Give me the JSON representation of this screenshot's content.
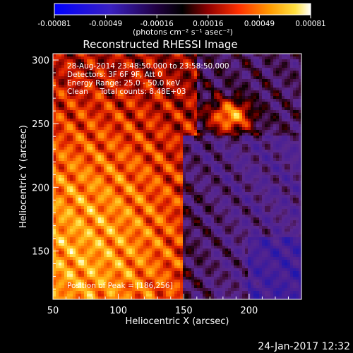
{
  "title": "Reconstructed RHESSI Image",
  "colorbar": {
    "ticks": [
      "-0.00081",
      "-0.00049",
      "-0.00016",
      "0.00016",
      "0.00049",
      "0.00081"
    ],
    "unit_label": "(photons cm⁻² s⁻¹ asec⁻²)",
    "colors": [
      "#0000ff",
      "#4b1fb4",
      "#000000",
      "#a00000",
      "#ff4000",
      "#ff9a00",
      "#ffe040",
      "#ffffff"
    ]
  },
  "annotations": {
    "time_range": "28-Aug-2014 23:48:50.000 to 23:58:50.000",
    "detectors": "Detectors: 3F 6F 9F, Att 0",
    "energy": "Energy Range: 25.0 - 50.0 keV",
    "clean": "Clean     Total counts: 8.48E+03",
    "peak": "Position of Peak = [186,256]"
  },
  "footer_timestamp": "24-Jan-2017 12:32",
  "chart_data": {
    "type": "heatmap",
    "title": "Reconstructed RHESSI Image",
    "xlabel": "Heliocentric X (arcsec)",
    "ylabel": "Heliocentric Y (arcsec)",
    "xlim": [
      50,
      240
    ],
    "ylim": [
      112,
      305
    ],
    "x_ticks": [
      50,
      100,
      150,
      200
    ],
    "y_ticks": [
      150,
      200,
      250,
      300
    ],
    "value_range": [
      -0.00081,
      0.00081
    ],
    "peak": [
      186,
      256
    ]
  }
}
